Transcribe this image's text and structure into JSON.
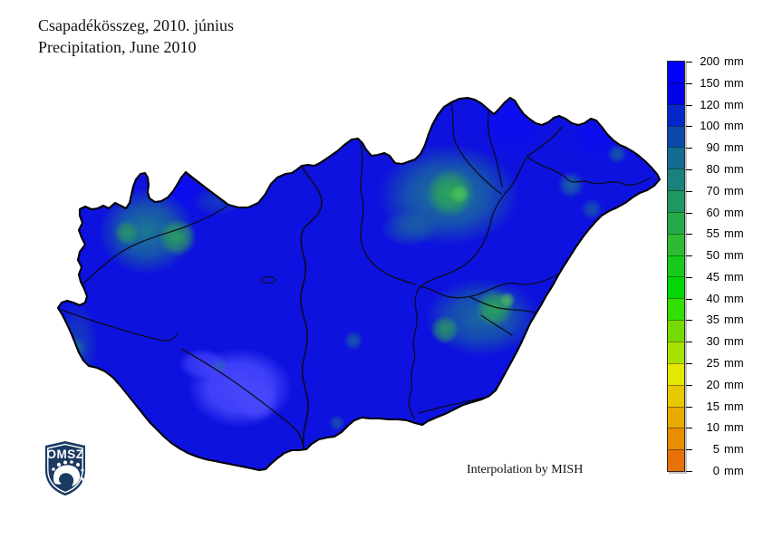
{
  "title": {
    "line1": "Csapadékösszeg, 2010. június",
    "line2": "Precipitation, June 2010"
  },
  "attribution": "Interpolation by MISH",
  "logo": {
    "text": "OMSZ"
  },
  "map": {
    "region": "Hungary"
  },
  "legend": {
    "unit": "mm",
    "tick_labels": [
      "200 mm",
      "150 mm",
      "120 mm",
      "100 mm",
      "90 mm",
      "80 mm",
      "70 mm",
      "60 mm",
      "55 mm",
      "50 mm",
      "45 mm",
      "40 mm",
      "35 mm",
      "30 mm",
      "25 mm",
      "20 mm",
      "15 mm",
      "10 mm",
      "5 mm",
      "0 mm"
    ],
    "segments": [
      {
        "range": "150-200 mm",
        "color": "#0000FC"
      },
      {
        "range": "120-150 mm",
        "color": "#0003E6"
      },
      {
        "range": "100-120 mm",
        "color": "#0527C9"
      },
      {
        "range": "90-100 mm",
        "color": "#0B49AC"
      },
      {
        "range": "80-90 mm",
        "color": "#126B93"
      },
      {
        "range": "70-80 mm",
        "color": "#19827B"
      },
      {
        "range": "60-70 mm",
        "color": "#1F9762"
      },
      {
        "range": "55-60 mm",
        "color": "#26A949"
      },
      {
        "range": "50-55 mm",
        "color": "#2DBB33"
      },
      {
        "range": "45-50 mm",
        "color": "#18CA1B"
      },
      {
        "range": "40-45 mm",
        "color": "#02D606"
      },
      {
        "range": "35-40 mm",
        "color": "#33DF02"
      },
      {
        "range": "30-35 mm",
        "color": "#76DB00"
      },
      {
        "range": "25-30 mm",
        "color": "#A8E300"
      },
      {
        "range": "20-25 mm",
        "color": "#E4E700"
      },
      {
        "range": "15-20 mm",
        "color": "#E8C800"
      },
      {
        "range": "10-15 mm",
        "color": "#E9AA00"
      },
      {
        "range": "5-10 mm",
        "color": "#E98D00"
      },
      {
        "range": "0-5 mm",
        "color": "#E77007"
      }
    ]
  },
  "chart_data": {
    "type": "heatmap",
    "title": "Csapadékösszeg, 2010. június / Precipitation, June 2010",
    "legend_values_mm": [
      200,
      150,
      120,
      100,
      90,
      80,
      70,
      60,
      55,
      50,
      45,
      40,
      35,
      30,
      25,
      20,
      15,
      10,
      5,
      0
    ],
    "value_range_mm": [
      0,
      200
    ],
    "observations": "Most of Hungary shows 100-150 mm (blue); above 150 mm in a south-central patch; local minima of 50-80 mm (green) in the west (Vas), the Mátra-Bükk region in the north-east and the south-east (Békés)."
  }
}
